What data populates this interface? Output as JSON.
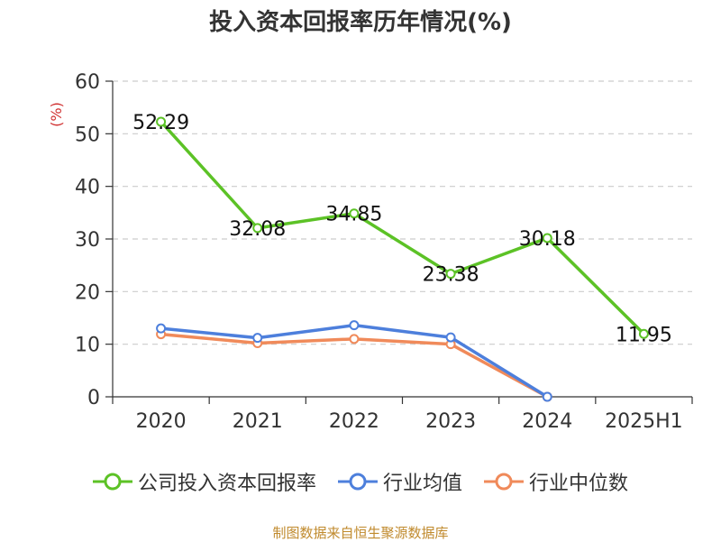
{
  "chart_data": {
    "type": "line",
    "title": "投入资本回报率历年情况(%)",
    "ylabel": "(%)",
    "categories": [
      "2020",
      "2021",
      "2022",
      "2023",
      "2024",
      "2025H1"
    ],
    "ylim": [
      0,
      60
    ],
    "yticks": [
      0,
      10,
      20,
      30,
      40,
      50,
      60
    ],
    "grid": true,
    "legend_position": "bottom",
    "series": [
      {
        "name": "公司投入资本回报率",
        "color": "#5cc226",
        "values": [
          52.29,
          32.08,
          34.85,
          23.38,
          30.18,
          11.95
        ],
        "labels": [
          "52.29",
          "32.08",
          "34.85",
          "23.38",
          "30.18",
          "11.95"
        ]
      },
      {
        "name": "行业均值",
        "color": "#4d7fdc",
        "values": [
          13.0,
          11.2,
          13.6,
          11.3,
          0.0,
          null
        ]
      },
      {
        "name": "行业中位数",
        "color": "#f08a5a",
        "values": [
          11.9,
          10.2,
          11.0,
          10.0,
          0.0,
          null
        ]
      }
    ]
  },
  "source": "制图数据来自恒生聚源数据库"
}
